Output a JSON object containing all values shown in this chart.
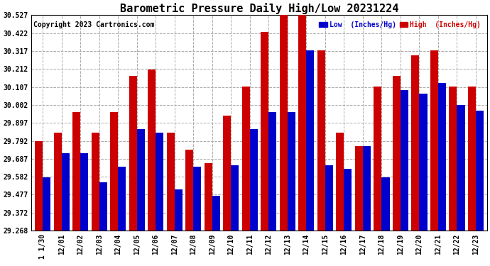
{
  "title": "Barometric Pressure Daily High/Low 20231224",
  "copyright": "Copyright 2023 Cartronics.com",
  "dates": [
    " 1 1/30",
    "12/01",
    "12/02",
    "12/03",
    "12/04",
    "12/05",
    "12/06",
    "12/07",
    "12/08",
    "12/09",
    "12/10",
    "12/11",
    "12/12",
    "12/13",
    "12/14",
    "12/15",
    "12/16",
    "12/17",
    "12/18",
    "12/19",
    "12/20",
    "12/21",
    "12/22",
    "12/23"
  ],
  "high_values": [
    29.79,
    29.84,
    29.96,
    29.84,
    29.96,
    30.17,
    30.21,
    29.84,
    29.74,
    29.66,
    29.94,
    30.11,
    30.43,
    30.53,
    30.53,
    30.32,
    29.84,
    29.76,
    30.11,
    30.17,
    30.29,
    30.32,
    30.11,
    30.11
  ],
  "low_values": [
    29.58,
    29.72,
    29.72,
    29.55,
    29.64,
    29.86,
    29.84,
    29.51,
    29.64,
    29.47,
    29.65,
    29.86,
    29.96,
    29.96,
    30.32,
    29.65,
    29.63,
    29.76,
    29.58,
    30.09,
    30.07,
    30.13,
    30.0,
    29.97
  ],
  "low_color": "#0000cc",
  "high_color": "#cc0000",
  "background_color": "#ffffff",
  "grid_color": "#aaaaaa",
  "ylim_min": 29.268,
  "ylim_max": 30.527,
  "yticks": [
    29.268,
    29.372,
    29.477,
    29.582,
    29.687,
    29.792,
    29.897,
    30.002,
    30.107,
    30.212,
    30.317,
    30.422,
    30.527
  ],
  "legend_low_label": "Low  (Inches/Hg)",
  "legend_high_label": "High  (Inches/Hg)",
  "title_fontsize": 11,
  "copyright_fontsize": 7,
  "tick_fontsize": 7,
  "bar_width": 0.42,
  "figwidth": 6.9,
  "figheight": 3.75,
  "dpi": 100
}
